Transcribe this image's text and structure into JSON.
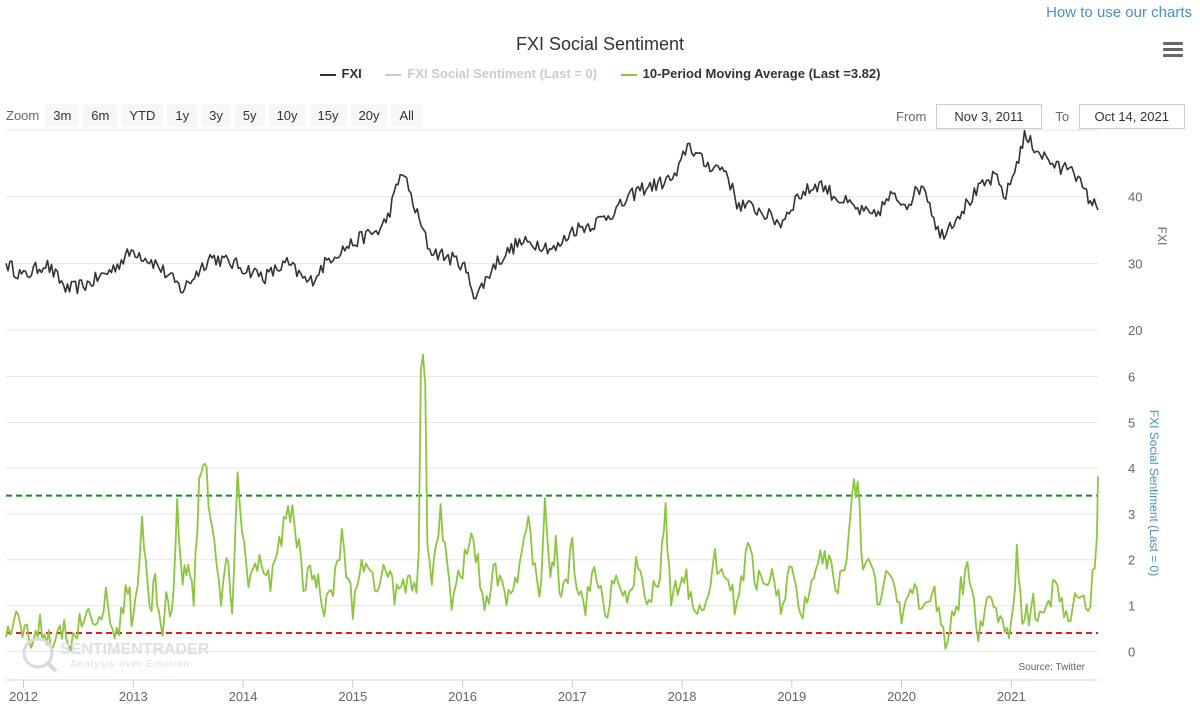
{
  "header": {
    "help_link": "How to use our charts"
  },
  "toolbar": {
    "zoom_label": "Zoom",
    "zoom_buttons": [
      "3m",
      "6m",
      "YTD",
      "1y",
      "3y",
      "5y",
      "10y",
      "15y",
      "20y",
      "All"
    ],
    "from_label": "From",
    "from_value": "Nov 3, 2011",
    "to_label": "To",
    "to_value": "Oct 14, 2021"
  },
  "colors": {
    "fxi": "#333333",
    "sentiment": "#cccccc",
    "ma": "#8cc63f",
    "upper": "#1a8a1a",
    "lower": "#e02020"
  },
  "chart_data": {
    "type": "line",
    "title": "FXI Social Sentiment",
    "legend_position": "top-center",
    "x_ticks": [
      "2012",
      "2013",
      "2014",
      "2015",
      "2016",
      "2017",
      "2018",
      "2019",
      "2020",
      "2021"
    ],
    "source": "Source: Twitter",
    "watermark": "SENTIMENTRADER Analysis over Emotion",
    "panels": [
      {
        "ylabel": "FXI",
        "ylim": [
          20,
          50
        ],
        "yticks": [
          "20",
          "30",
          "40"
        ],
        "series": [
          {
            "name": "FXI",
            "x": [
              2011.84,
              2012.0,
              2012.2,
              2012.4,
              2012.6,
              2012.8,
              2013.0,
              2013.2,
              2013.45,
              2013.7,
              2013.9,
              2014.2,
              2014.4,
              2014.6,
              2014.8,
              2015.0,
              2015.1,
              2015.25,
              2015.32,
              2015.45,
              2015.55,
              2015.7,
              2015.85,
              2016.0,
              2016.12,
              2016.3,
              2016.5,
              2016.7,
              2016.85,
              2017.0,
              2017.2,
              2017.4,
              2017.6,
              2017.8,
              2017.95,
              2018.05,
              2018.2,
              2018.4,
              2018.5,
              2018.7,
              2018.9,
              2019.05,
              2019.25,
              2019.4,
              2019.6,
              2019.75,
              2019.9,
              2020.05,
              2020.2,
              2020.35,
              2020.55,
              2020.7,
              2020.85,
              2020.95,
              2021.05,
              2021.12,
              2021.3,
              2021.45,
              2021.55,
              2021.65,
              2021.79
            ],
            "values": [
              30,
              28,
              30,
              26,
              27,
              29,
              32,
              30,
              26,
              31,
              30,
              28,
              30,
              27,
              31,
              33,
              34,
              35,
              37,
              44,
              39,
              32,
              31,
              30,
              25,
              30,
              33,
              33,
              32,
              35,
              36,
              38,
              41,
              42,
              43,
              48,
              45,
              44,
              39,
              38,
              36,
              40,
              42,
              40,
              38,
              37,
              40,
              39,
              42,
              34,
              38,
              41,
              43,
              40,
              45,
              49,
              46,
              44,
              45,
              41,
              38
            ]
          },
          {
            "name": "FXI Social Sentiment (Last = 0)",
            "visible": false
          }
        ]
      },
      {
        "ylabel": "FXI Social Sentiment (Last = 0)",
        "ylim": [
          -0.3,
          6.8
        ],
        "yticks": [
          "0",
          "1",
          "2",
          "3",
          "4",
          "5",
          "6"
        ],
        "series": [
          {
            "name": "10-Period Moving Average (Last =3.82)",
            "x": [
              2011.84,
              2011.95,
              2012.05,
              2012.15,
              2012.25,
              2012.35,
              2012.45,
              2012.55,
              2012.65,
              2012.75,
              2012.85,
              2012.95,
              2013.0,
              2013.08,
              2013.15,
              2013.2,
              2013.25,
              2013.3,
              2013.35,
              2013.4,
              2013.45,
              2013.5,
              2013.55,
              2013.6,
              2013.65,
              2013.72,
              2013.8,
              2013.85,
              2013.9,
              2013.95,
              2014.05,
              2014.15,
              2014.25,
              2014.35,
              2014.45,
              2014.55,
              2014.65,
              2014.72,
              2014.8,
              2014.9,
              2015.0,
              2015.1,
              2015.2,
              2015.3,
              2015.4,
              2015.5,
              2015.58,
              2015.6,
              2015.62,
              2015.64,
              2015.66,
              2015.68,
              2015.72,
              2015.8,
              2015.9,
              2016.0,
              2016.1,
              2016.2,
              2016.3,
              2016.4,
              2016.5,
              2016.6,
              2016.7,
              2016.75,
              2016.8,
              2016.85,
              2016.9,
              2017.0,
              2017.1,
              2017.2,
              2017.3,
              2017.4,
              2017.5,
              2017.6,
              2017.7,
              2017.8,
              2017.85,
              2017.9,
              2018.0,
              2018.1,
              2018.2,
              2018.3,
              2018.4,
              2018.5,
              2018.6,
              2018.7,
              2018.8,
              2018.9,
              2019.0,
              2019.1,
              2019.2,
              2019.3,
              2019.4,
              2019.5,
              2019.55,
              2019.6,
              2019.65,
              2019.7,
              2019.8,
              2019.9,
              2020.0,
              2020.1,
              2020.2,
              2020.3,
              2020.4,
              2020.5,
              2020.6,
              2020.7,
              2020.8,
              2020.9,
              2021.0,
              2021.05,
              2021.1,
              2021.2,
              2021.3,
              2021.4,
              2021.5,
              2021.6,
              2021.7,
              2021.74,
              2021.76,
              2021.78,
              2021.79
            ],
            "values": [
              0.3,
              0.8,
              0.2,
              0.6,
              0.3,
              0.5,
              0.2,
              0.9,
              0.4,
              1.2,
              0.3,
              1.5,
              0.5,
              2.9,
              0.8,
              1.5,
              0.3,
              1.0,
              0.6,
              3.2,
              1.5,
              2.0,
              1.0,
              3.8,
              4.3,
              2.5,
              1.2,
              2.0,
              1.0,
              3.8,
              1.5,
              2.0,
              1.5,
              2.5,
              3.2,
              1.5,
              1.8,
              1.0,
              1.2,
              2.5,
              1.0,
              2.0,
              1.5,
              1.8,
              1.2,
              1.5,
              1.2,
              2.0,
              6.2,
              6.5,
              6.0,
              2.5,
              1.5,
              3.0,
              1.2,
              1.8,
              2.5,
              1.0,
              1.8,
              1.3,
              1.5,
              2.8,
              1.0,
              3.3,
              1.5,
              2.5,
              1.0,
              2.2,
              0.8,
              2.0,
              0.9,
              1.5,
              1.2,
              2.0,
              1.0,
              1.8,
              3.2,
              1.0,
              1.8,
              1.2,
              0.8,
              2.0,
              1.5,
              1.0,
              2.2,
              1.5,
              1.8,
              1.0,
              2.0,
              0.8,
              1.5,
              2.2,
              1.3,
              2.0,
              3.5,
              3.7,
              1.5,
              2.0,
              1.0,
              1.8,
              0.7,
              1.5,
              1.0,
              1.2,
              0.2,
              1.0,
              1.8,
              0.5,
              1.2,
              0.8,
              0.4,
              2.2,
              0.6,
              1.0,
              0.8,
              1.5,
              0.6,
              1.2,
              0.9,
              1.6,
              2.0,
              2.5,
              3.82
            ]
          },
          {
            "name": "upper threshold",
            "values": [
              3.4
            ]
          },
          {
            "name": "lower threshold",
            "values": [
              0.4
            ]
          }
        ]
      }
    ]
  }
}
